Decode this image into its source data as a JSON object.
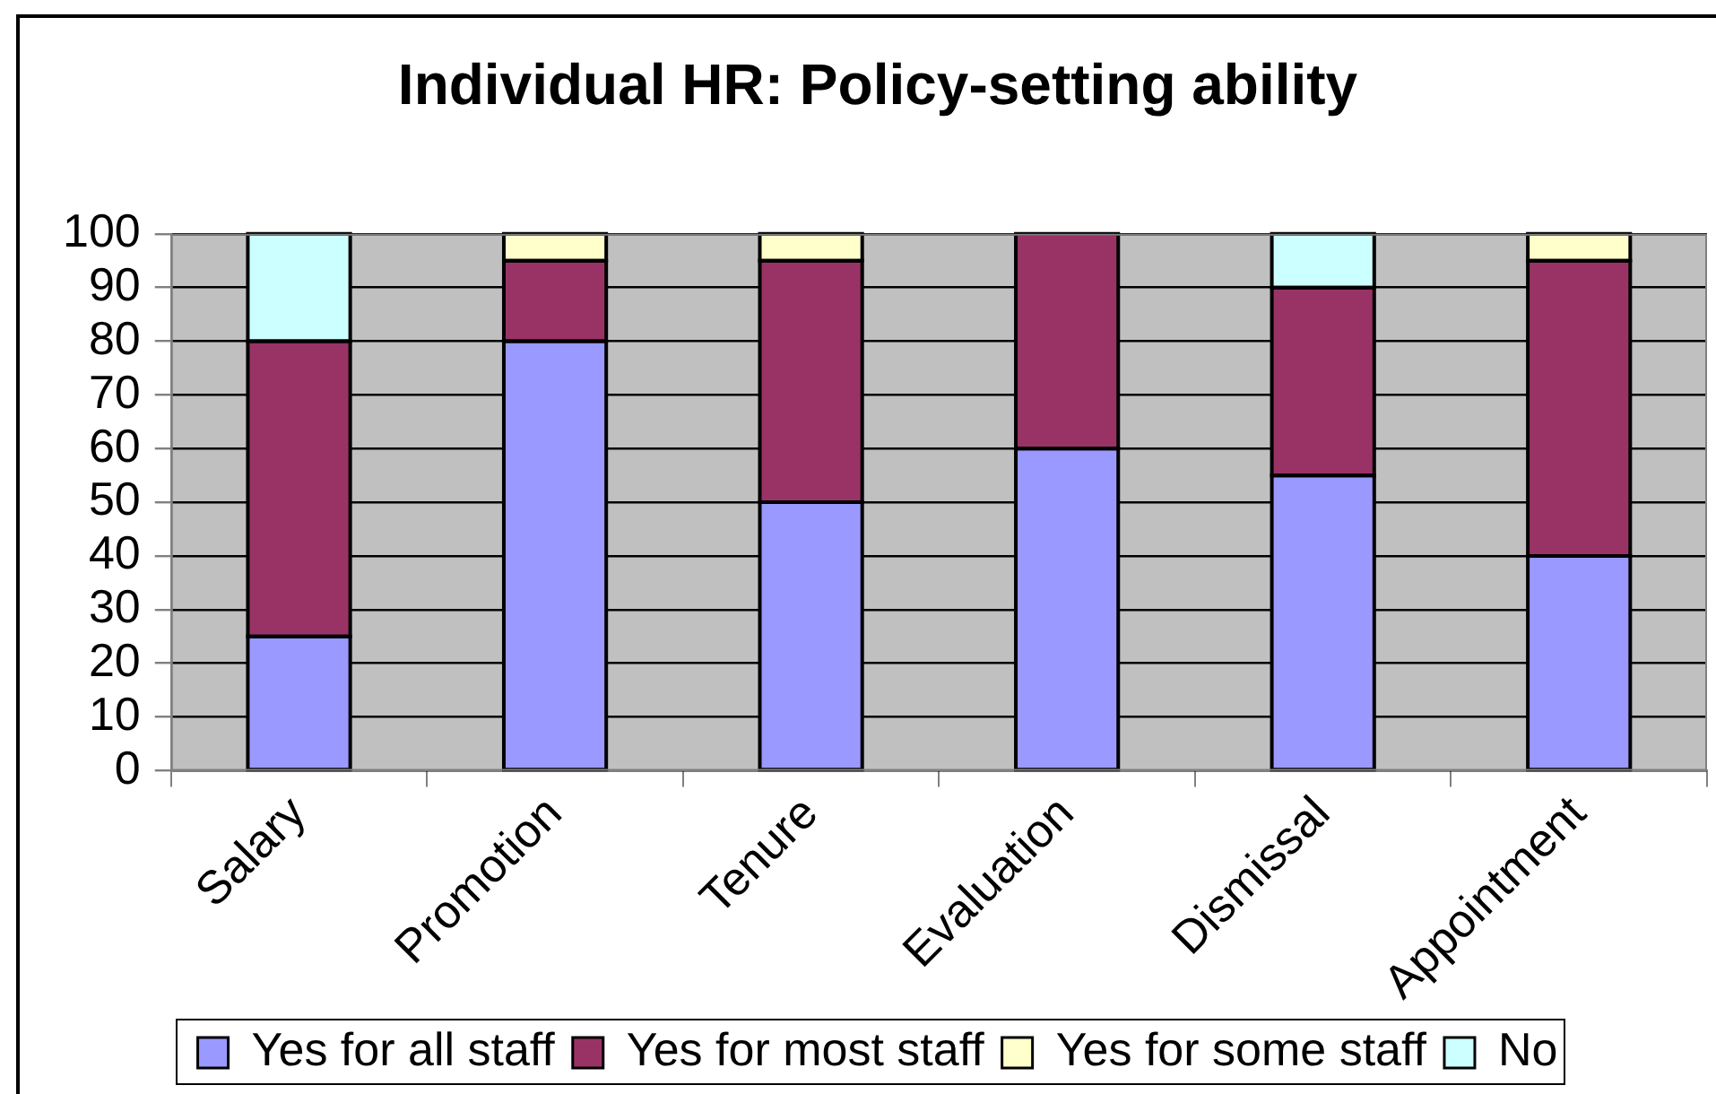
{
  "chart_data": {
    "type": "bar",
    "title": "Individual HR: Policy-setting ability",
    "categories": [
      "Salary",
      "Promotion",
      "Tenure",
      "Evaluation",
      "Dismissal",
      "Appointment"
    ],
    "stacked": true,
    "series": [
      {
        "name": "Yes for all staff",
        "color": "#9999ff",
        "values": [
          25,
          80,
          50,
          60,
          55,
          40
        ]
      },
      {
        "name": "Yes for most staff",
        "color": "#993366",
        "values": [
          55,
          15,
          45,
          40,
          35,
          55
        ]
      },
      {
        "name": "Yes for some staff",
        "color": "#ffffcc",
        "values": [
          0,
          5,
          5,
          0,
          0,
          5
        ]
      },
      {
        "name": "No",
        "color": "#ccffff",
        "values": [
          20,
          0,
          0,
          0,
          10,
          0
        ]
      }
    ],
    "ylim": [
      0,
      100
    ],
    "yticks": [
      0,
      10,
      20,
      30,
      40,
      50,
      60,
      70,
      80,
      90,
      100
    ],
    "grid": "y",
    "legend": "bottom"
  }
}
